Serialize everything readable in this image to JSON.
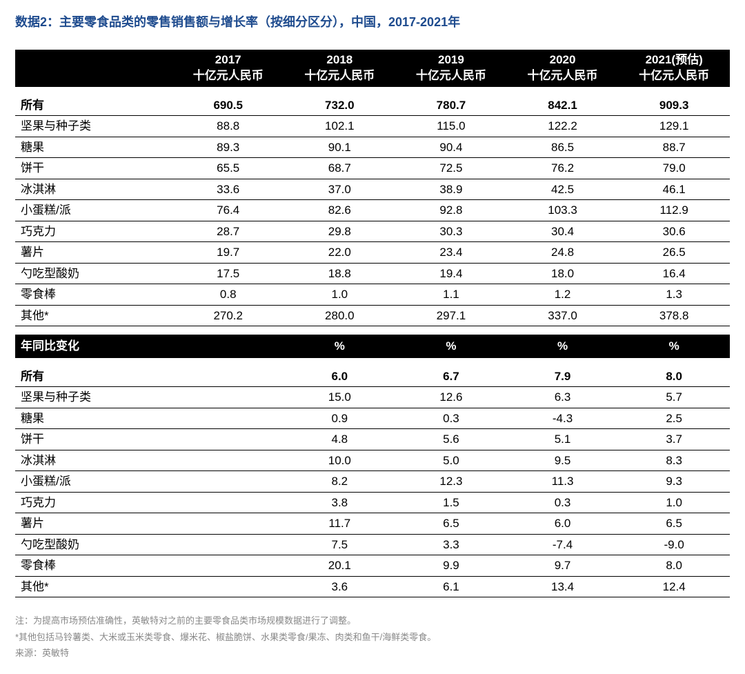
{
  "title": "数据2：主要零食品类的零售销售额与增长率（按细分区分），中国，2017-2021年",
  "columns": {
    "c2017": [
      "2017",
      "十亿元人民币"
    ],
    "c2018": [
      "2018",
      "十亿元人民币"
    ],
    "c2019": [
      "2019",
      "十亿元人民币"
    ],
    "c2020": [
      "2020",
      "十亿元人民币"
    ],
    "c2021": [
      "2021(预估)",
      "十亿元人民币"
    ]
  },
  "section1_total": {
    "label": "所有",
    "v": [
      "690.5",
      "732.0",
      "780.7",
      "842.1",
      "909.3"
    ]
  },
  "section1_rows": [
    {
      "label": "坚果与种子类",
      "v": [
        "88.8",
        "102.1",
        "115.0",
        "122.2",
        "129.1"
      ]
    },
    {
      "label": "糖果",
      "v": [
        "89.3",
        "90.1",
        "90.4",
        "86.5",
        "88.7"
      ]
    },
    {
      "label": "饼干",
      "v": [
        "65.5",
        "68.7",
        "72.5",
        "76.2",
        "79.0"
      ]
    },
    {
      "label": "冰淇淋",
      "v": [
        "33.6",
        "37.0",
        "38.9",
        "42.5",
        "46.1"
      ]
    },
    {
      "label": "小蛋糕/派",
      "v": [
        "76.4",
        "82.6",
        "92.8",
        "103.3",
        "112.9"
      ]
    },
    {
      "label": "巧克力",
      "v": [
        "28.7",
        "29.8",
        "30.3",
        "30.4",
        "30.6"
      ]
    },
    {
      "label": "薯片",
      "v": [
        "19.7",
        "22.0",
        "23.4",
        "24.8",
        "26.5"
      ]
    },
    {
      "label": "勺吃型酸奶",
      "v": [
        "17.5",
        "18.8",
        "19.4",
        "18.0",
        "16.4"
      ]
    },
    {
      "label": "零食棒",
      "v": [
        "0.8",
        "1.0",
        "1.1",
        "1.2",
        "1.3"
      ]
    },
    {
      "label": "其他*",
      "v": [
        "270.2",
        "280.0",
        "297.1",
        "337.0",
        "378.8"
      ]
    }
  ],
  "section2_header": {
    "label": "年同比变化",
    "v": [
      "",
      "%",
      "%",
      "%",
      "%"
    ]
  },
  "section2_total": {
    "label": "所有",
    "v": [
      "",
      "6.0",
      "6.7",
      "7.9",
      "8.0"
    ]
  },
  "section2_rows": [
    {
      "label": "坚果与种子类",
      "v": [
        "",
        "15.0",
        "12.6",
        "6.3",
        "5.7"
      ]
    },
    {
      "label": "糖果",
      "v": [
        "",
        "0.9",
        "0.3",
        "-4.3",
        "2.5"
      ]
    },
    {
      "label": "饼干",
      "v": [
        "",
        "4.8",
        "5.6",
        "5.1",
        "3.7"
      ]
    },
    {
      "label": "冰淇淋",
      "v": [
        "",
        "10.0",
        "5.0",
        "9.5",
        "8.3"
      ]
    },
    {
      "label": "小蛋糕/派",
      "v": [
        "",
        "8.2",
        "12.3",
        "11.3",
        "9.3"
      ]
    },
    {
      "label": "巧克力",
      "v": [
        "",
        "3.8",
        "1.5",
        "0.3",
        "1.0"
      ]
    },
    {
      "label": "薯片",
      "v": [
        "",
        "11.7",
        "6.5",
        "6.0",
        "6.5"
      ]
    },
    {
      "label": "勺吃型酸奶",
      "v": [
        "",
        "7.5",
        "3.3",
        "-7.4",
        "-9.0"
      ]
    },
    {
      "label": "零食棒",
      "v": [
        "",
        "20.1",
        "9.9",
        "9.7",
        "8.0"
      ]
    },
    {
      "label": "其他*",
      "v": [
        "",
        "3.6",
        "6.1",
        "13.4",
        "12.4"
      ]
    }
  ],
  "footnotes": [
    "注：为提高市场预估准确性，英敏特对之前的主要零食品类市场规模数据进行了调整。",
    "*其他包括马铃薯类、大米或玉米类零食、爆米花、椒盐脆饼、水果类零食/果冻、肉类和鱼干/海鲜类零食。",
    "来源：英敏特"
  ],
  "styling": {
    "title_color": "#1e4b8e",
    "header_bg": "#000000",
    "header_fg": "#ffffff",
    "row_border": "#000000",
    "background": "#ffffff",
    "footnote_color": "#888888",
    "title_fontsize": 18,
    "body_fontsize": 17,
    "footnote_fontsize": 13
  }
}
